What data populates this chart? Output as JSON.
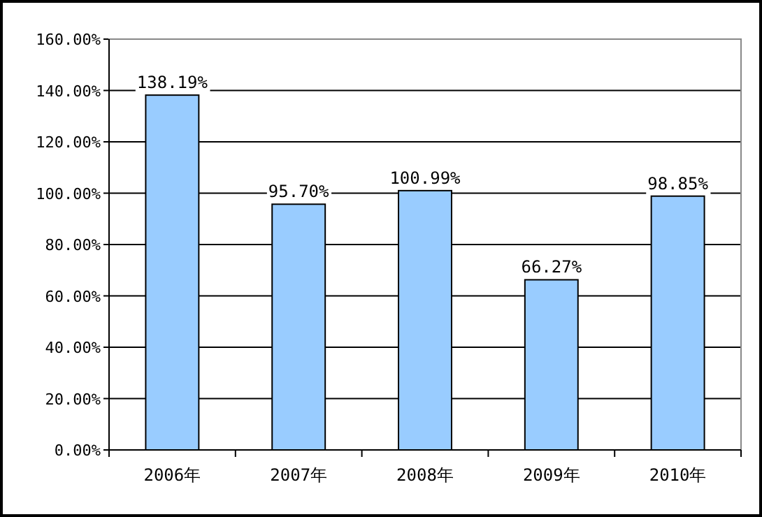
{
  "chart_data": {
    "type": "bar",
    "categories": [
      "2006年",
      "2007年",
      "2008年",
      "2009年",
      "2010年"
    ],
    "values": [
      138.19,
      95.7,
      100.99,
      66.27,
      98.85
    ],
    "value_labels": [
      "138.19%",
      "95.70%",
      "100.99%",
      "66.27%",
      "98.85%"
    ],
    "color": "#99ccff",
    "ylim": [
      0,
      160
    ],
    "yticks": [
      {
        "value": 0,
        "label": "0.00%"
      },
      {
        "value": 20,
        "label": "20.00%"
      },
      {
        "value": 40,
        "label": "40.00%"
      },
      {
        "value": 60,
        "label": "60.00%"
      },
      {
        "value": 80,
        "label": "80.00%"
      },
      {
        "value": 100,
        "label": "100.00%"
      },
      {
        "value": 120,
        "label": "120.00%"
      },
      {
        "value": 140,
        "label": "140.00%"
      },
      {
        "value": 160,
        "label": "160.00%"
      }
    ],
    "grid": "y"
  }
}
